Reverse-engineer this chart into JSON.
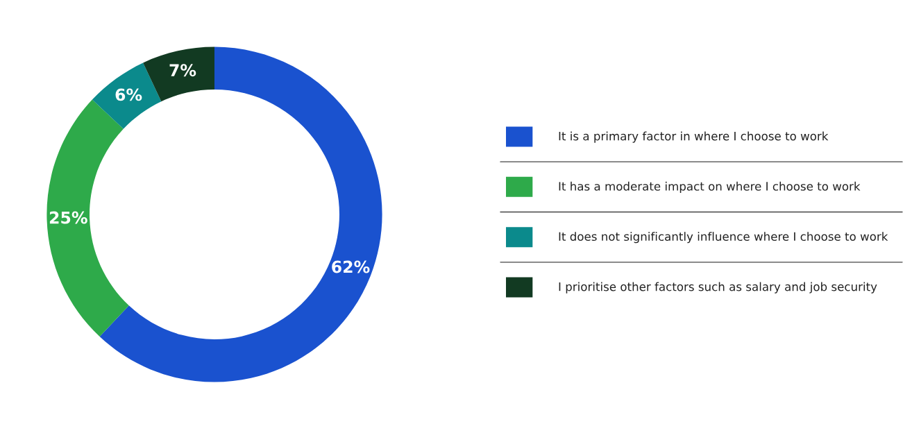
{
  "chart_data": {
    "type": "donut",
    "categories": [
      "It is a primary factor in where I choose to work",
      "It has a moderate impact on where I choose to work",
      "It does not significantly influence where I choose to work",
      "I prioritise other factors such as salary and job security"
    ],
    "values": [
      62,
      25,
      6,
      7
    ],
    "colors": [
      "#1a52cf",
      "#2eaa4a",
      "#0b8a8c",
      "#123a22"
    ],
    "value_labels": [
      "62%",
      "25%",
      "6%",
      "7%"
    ],
    "legend": "right"
  }
}
